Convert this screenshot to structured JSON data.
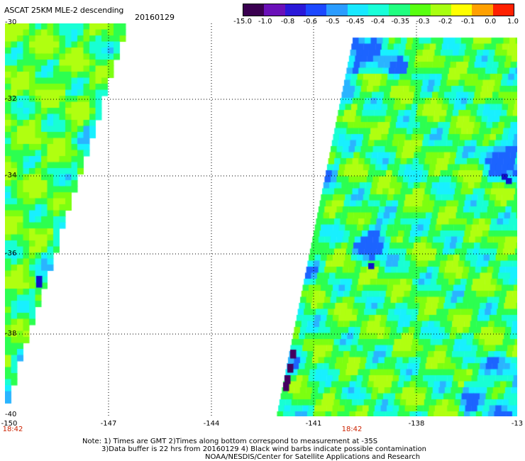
{
  "header": {
    "title": "ASCAT 25KM MLE-2 descending",
    "date": "20160129"
  },
  "colorbar": {
    "labels": [
      "-15.0",
      "-1.0",
      "-0.8",
      "-0.6",
      "-0.5",
      "-0.45",
      "-0.4",
      "-0.35",
      "-0.3",
      "-0.2",
      "-0.1",
      "0.0",
      "1.0"
    ],
    "colors": [
      "#3a0050",
      "#6a10b8",
      "#2a18d8",
      "#1c48ff",
      "#2a9cff",
      "#18e8ff",
      "#18ffd8",
      "#20ff80",
      "#58ff10",
      "#a8ff10",
      "#ffff00",
      "#ffa000",
      "#ff2000"
    ]
  },
  "map": {
    "lat_labels": [
      "-30",
      "-32",
      "-34",
      "-36",
      "-38",
      "-40"
    ],
    "lon_labels": [
      "-150",
      "-147",
      "-144",
      "-141",
      "-138",
      "-13"
    ],
    "pass_times": [
      {
        "label": "18:42",
        "lon": "-150"
      },
      {
        "label": "18:42",
        "lon": "-140"
      }
    ],
    "palette": {
      "deep": "#1010c8",
      "blue": "#1c64ff",
      "light_blue": "#2ab4ff",
      "cyan": "#18f0ff",
      "aqua": "#18ffd4",
      "green": "#2cff50",
      "lime": "#7cff10",
      "yellow_green": "#b0ff10",
      "purple": "#440060"
    }
  },
  "notes": {
    "line1": "Note: 1) Times are GMT 2)Times along bottom correspond to measurement at -35S",
    "line2": "3)Data buffer is 22 hrs from 20160129 4) Black wind barbs indicate possible contamination",
    "line3": "NOAA/NESDIS/Center for Satellite Applications and Research"
  }
}
